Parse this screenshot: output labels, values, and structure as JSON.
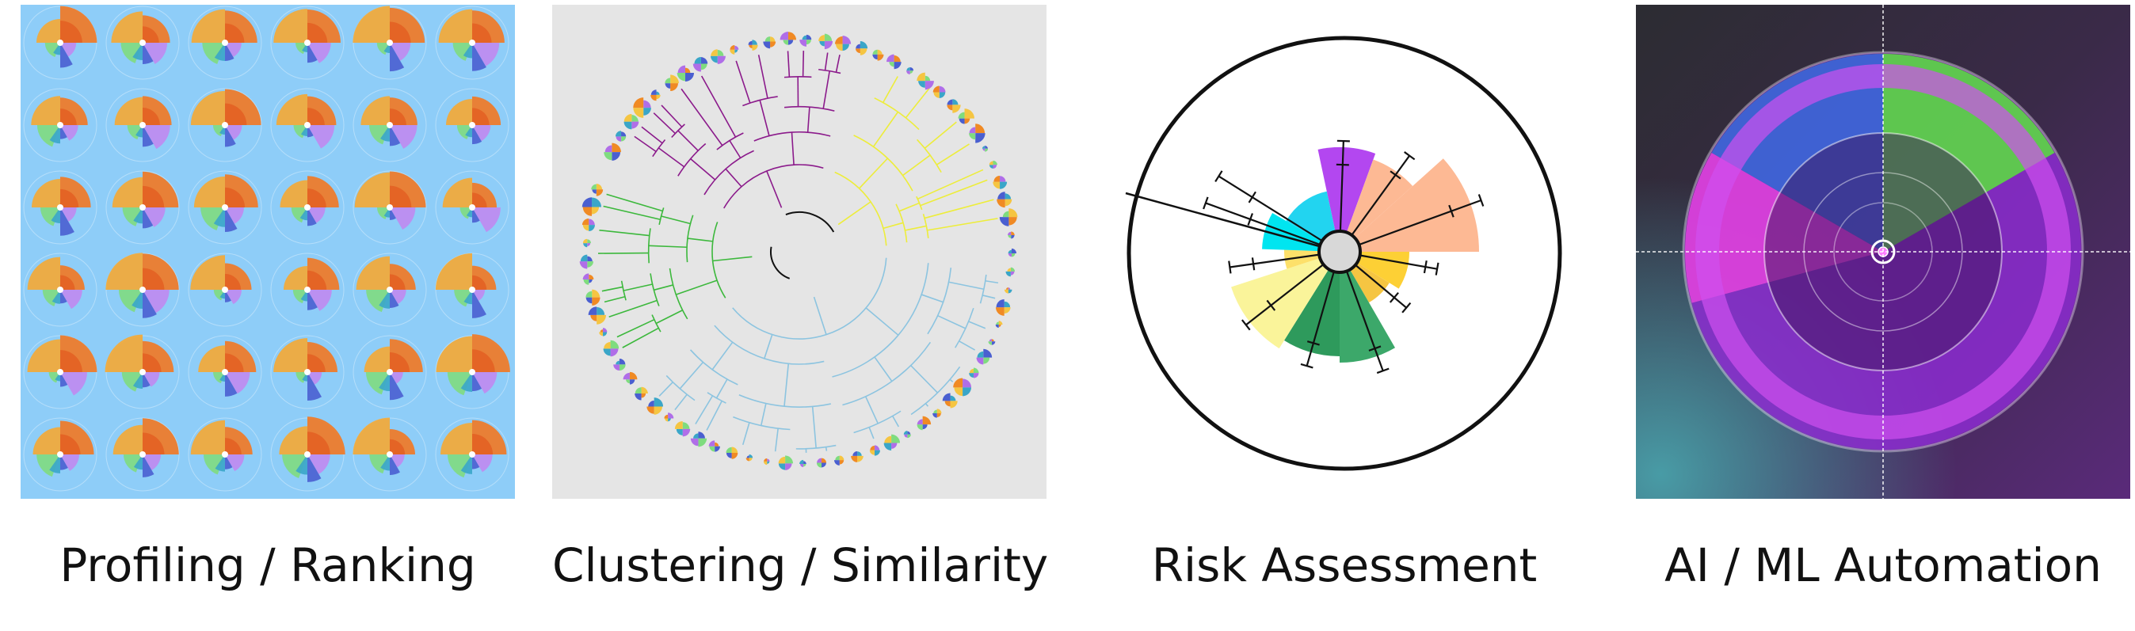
{
  "captions": {
    "profiling": "Profiling / Ranking",
    "clustering": "Clustering / Similarity",
    "risk": "Risk Assessment",
    "automation": "AI / ML Automation"
  },
  "colors": {
    "profiling_bg": "#8ecdf8",
    "clustering_bg": "#e5e5e5",
    "cluster_purple": "#8b1a8b",
    "cluster_yellow": "#eded3a",
    "cluster_green": "#3cb83c",
    "cluster_blue": "#8cc4e0",
    "orange": "#f08a24",
    "green": "#7fdc7f",
    "violet": "#b06ee8",
    "blue": "#4a5fd0",
    "magenta": "#e040e0"
  }
}
